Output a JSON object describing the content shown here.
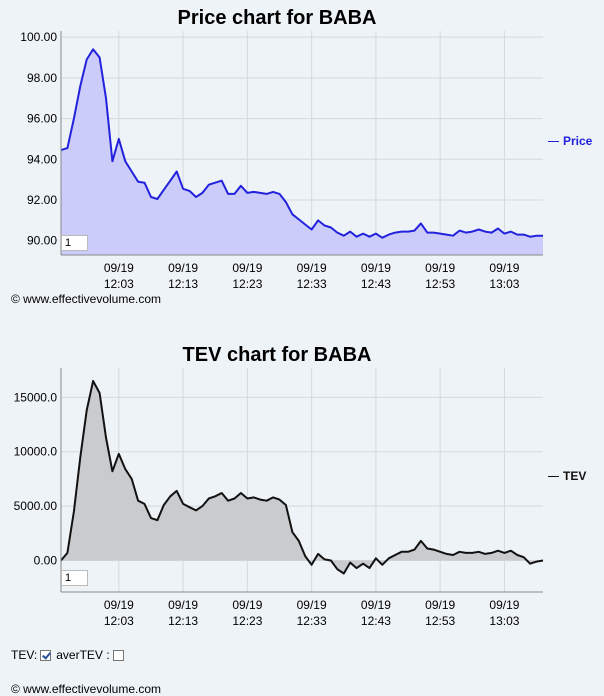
{
  "chart_data": [
    {
      "type": "area",
      "title": "Price chart for BABA",
      "legend": "Price",
      "legend_placement": "right",
      "color": "#2222dd",
      "fill": "#ccccfa",
      "ylim": [
        89.3,
        100.3
      ],
      "yticks": [
        "100.00",
        "98.00",
        "96.00",
        "94.00",
        "92.00",
        "90.00"
      ],
      "ytick_values": [
        100,
        98,
        96,
        94,
        92,
        90
      ],
      "xticks": [
        [
          "09/19",
          "12:03"
        ],
        [
          "09/19",
          "12:13"
        ],
        [
          "09/19",
          "12:23"
        ],
        [
          "09/19",
          "12:33"
        ],
        [
          "09/19",
          "12:43"
        ],
        [
          "09/19",
          "12:53"
        ],
        [
          "09/19",
          "13:03"
        ]
      ],
      "xtick_minutes": [
        3,
        13,
        23,
        33,
        43,
        53,
        63
      ],
      "xlim": [
        -6,
        69
      ],
      "grid": true,
      "x_minutes": [
        -6,
        -5,
        -4,
        -3,
        -2,
        -1,
        0,
        1,
        2,
        3,
        4,
        5,
        6,
        7,
        8,
        9,
        10,
        11,
        12,
        13,
        14,
        15,
        16,
        17,
        18,
        19,
        20,
        21,
        22,
        23,
        24,
        25,
        26,
        27,
        28,
        29,
        30,
        31,
        32,
        33,
        34,
        35,
        36,
        37,
        38,
        39,
        40,
        41,
        42,
        43,
        44,
        45,
        46,
        47,
        48,
        49,
        50,
        51,
        52,
        53,
        54,
        55,
        56,
        57,
        58,
        59,
        60,
        61,
        62,
        63,
        64,
        65,
        66,
        67,
        68,
        69
      ],
      "values": [
        94.45,
        94.55,
        96.0,
        97.6,
        98.9,
        99.4,
        99.0,
        97.0,
        93.9,
        95.0,
        93.9,
        93.4,
        92.9,
        92.85,
        92.15,
        92.05,
        92.5,
        92.95,
        93.4,
        92.55,
        92.45,
        92.15,
        92.35,
        92.75,
        92.85,
        92.95,
        92.3,
        92.3,
        92.7,
        92.35,
        92.4,
        92.35,
        92.3,
        92.4,
        92.3,
        91.9,
        91.3,
        91.05,
        90.8,
        90.55,
        91.0,
        90.75,
        90.65,
        90.4,
        90.25,
        90.45,
        90.2,
        90.35,
        90.2,
        90.35,
        90.15,
        90.3,
        90.4,
        90.45,
        90.45,
        90.5,
        90.85,
        90.4,
        90.4,
        90.35,
        90.3,
        90.25,
        90.5,
        90.4,
        90.45,
        90.55,
        90.45,
        90.4,
        90.6,
        90.35,
        90.45,
        90.3,
        90.3,
        90.2,
        90.25,
        90.25
      ],
      "range_input": "1",
      "copyright": "© www.effectivevolume.com"
    },
    {
      "type": "area",
      "title": "TEV chart for BABA",
      "legend": "TEV",
      "legend_placement": "right",
      "color": "#111111",
      "fill": "#c9ccce",
      "ylim": [
        -2900,
        17700
      ],
      "yticks": [
        "15000.0",
        "10000.0",
        "5000.00",
        "0.00"
      ],
      "ytick_values": [
        15000,
        10000,
        5000,
        0
      ],
      "xticks": [
        [
          "09/19",
          "12:03"
        ],
        [
          "09/19",
          "12:13"
        ],
        [
          "09/19",
          "12:23"
        ],
        [
          "09/19",
          "12:33"
        ],
        [
          "09/19",
          "12:43"
        ],
        [
          "09/19",
          "12:53"
        ],
        [
          "09/19",
          "13:03"
        ]
      ],
      "xtick_minutes": [
        3,
        13,
        23,
        33,
        43,
        53,
        63
      ],
      "xlim": [
        -6,
        69
      ],
      "grid": true,
      "x_minutes": [
        -6,
        -5,
        -4,
        -3,
        -2,
        -1,
        0,
        1,
        2,
        3,
        4,
        5,
        6,
        7,
        8,
        9,
        10,
        11,
        12,
        13,
        14,
        15,
        16,
        17,
        18,
        19,
        20,
        21,
        22,
        23,
        24,
        25,
        26,
        27,
        28,
        29,
        30,
        31,
        32,
        33,
        34,
        35,
        36,
        37,
        38,
        39,
        40,
        41,
        42,
        43,
        44,
        45,
        46,
        47,
        48,
        49,
        50,
        51,
        52,
        53,
        54,
        55,
        56,
        57,
        58,
        59,
        60,
        61,
        62,
        63,
        64,
        65,
        66,
        67,
        68,
        69
      ],
      "values": [
        0,
        700,
        4500,
        9500,
        13800,
        16500,
        15400,
        11300,
        8200,
        9800,
        8400,
        7500,
        5500,
        5200,
        3900,
        3700,
        5100,
        5900,
        6400,
        5200,
        4900,
        4600,
        5000,
        5700,
        5900,
        6200,
        5500,
        5700,
        6200,
        5700,
        5800,
        5600,
        5500,
        5800,
        5600,
        5100,
        2600,
        1800,
        400,
        -400,
        600,
        100,
        0,
        -800,
        -1200,
        -200,
        -700,
        -300,
        -700,
        200,
        -400,
        200,
        500,
        800,
        800,
        1000,
        1800,
        1100,
        1000,
        800,
        600,
        500,
        800,
        700,
        700,
        800,
        600,
        700,
        900,
        700,
        900,
        500,
        300,
        -300,
        -100,
        0
      ],
      "range_input": "1",
      "copyright": "© www.effectivevolume.com"
    }
  ],
  "controls": {
    "tev_label": "TEV:",
    "tev_checked": true,
    "avertev_label": "averTEV :",
    "avertev_checked": false
  }
}
